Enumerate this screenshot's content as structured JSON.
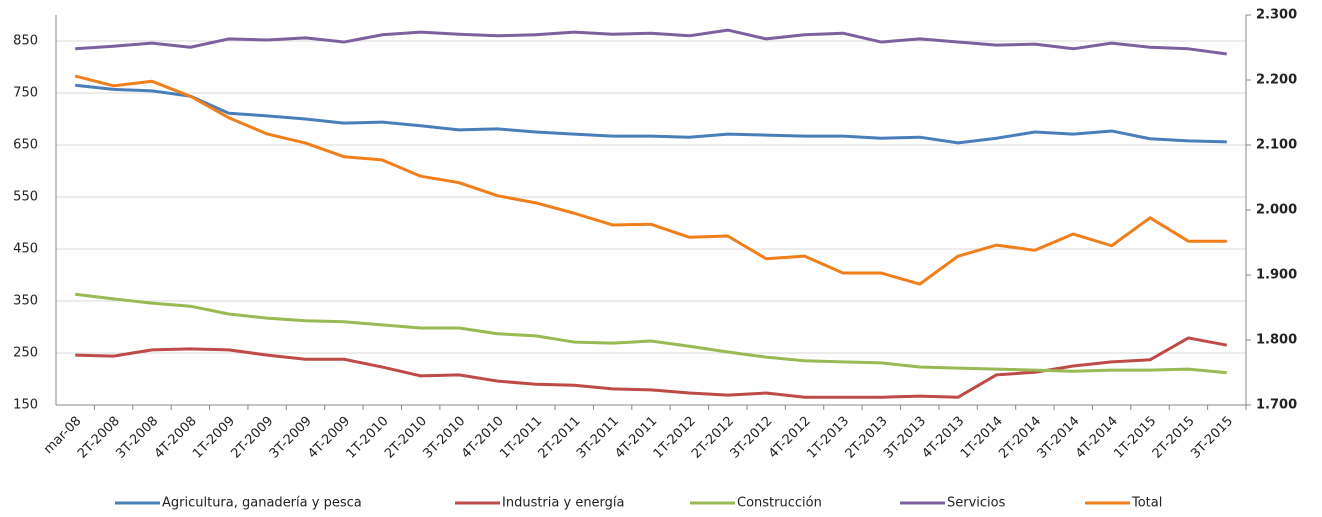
{
  "chart_data": {
    "type": "line",
    "categories": [
      "mar-08",
      "2T-2008",
      "3T-2008",
      "4T-2008",
      "1T-2009",
      "2T-2009",
      "3T-2009",
      "4T-2009",
      "1T-2010",
      "2T-2010",
      "3T-2010",
      "4T-2010",
      "1T-2011",
      "2T-2011",
      "3T-2011",
      "4T-2011",
      "1T-2012",
      "2T-2012",
      "3T-2012",
      "4T-2012",
      "1T-2013",
      "2T-2013",
      "3T-2013",
      "4T-2013",
      "1T-2014",
      "2T-2014",
      "3T-2014",
      "4T-2014",
      "1T-2015",
      "2T-2015",
      "3T-2015"
    ],
    "series": [
      {
        "name": "Agricultura, ganadería y pesca",
        "color": "#4a7ebb",
        "values": [
          765,
          757,
          754,
          744,
          711,
          706,
          700,
          692,
          694,
          687,
          679,
          681,
          675,
          671,
          667,
          667,
          665,
          671,
          669,
          667,
          667,
          663,
          665,
          654,
          663,
          675,
          671,
          677,
          662,
          658,
          656
        ]
      },
      {
        "name": "Industria y energía",
        "color": "#be4b48",
        "values": [
          246,
          244,
          256,
          258,
          256,
          246,
          238,
          238,
          223,
          206,
          208,
          196,
          190,
          188,
          181,
          179,
          173,
          169,
          173,
          165,
          165,
          165,
          167,
          165,
          208,
          213,
          225,
          233,
          237,
          279,
          265
        ]
      },
      {
        "name": "Construcción",
        "color": "#98b954",
        "values": [
          363,
          354,
          346,
          340,
          325,
          317,
          312,
          310,
          304,
          298,
          298,
          287,
          283,
          271,
          269,
          273,
          263,
          252,
          242,
          235,
          233,
          231,
          223,
          221,
          219,
          217,
          215,
          217,
          217,
          219,
          212
        ]
      },
      {
        "name": "Servicios",
        "color": "#7d60a0",
        "values": [
          835,
          840,
          846,
          838,
          854,
          852,
          856,
          848,
          862,
          867,
          863,
          860,
          862,
          867,
          863,
          865,
          860,
          871,
          854,
          862,
          865,
          848,
          854,
          848,
          842,
          844,
          835,
          846,
          838,
          835,
          825
        ]
      },
      {
        "name": "Total",
        "color": "#f07e1b",
        "axis": "y2",
        "values": [
          2206,
          2191,
          2198,
          2175,
          2142,
          2117,
          2103,
          2082,
          2077,
          2052,
          2042,
          2022,
          2011,
          1995,
          1977,
          1978,
          1958,
          1960,
          1925,
          1929,
          1903,
          1903,
          1886,
          1929,
          1946,
          1938,
          1963,
          1945,
          1988,
          1952,
          1952
        ]
      }
    ],
    "ylim": [
      150,
      900
    ],
    "yticks": [
      150,
      250,
      350,
      450,
      550,
      650,
      750,
      850
    ],
    "y2lim": [
      1700,
      2300
    ],
    "y2ticks": [
      {
        "value": 1700,
        "label": "1.700"
      },
      {
        "value": 1800,
        "label": "1.800"
      },
      {
        "value": 1900,
        "label": "1.900"
      },
      {
        "value": 2000,
        "label": "2.000"
      },
      {
        "value": 2100,
        "label": "2.100"
      },
      {
        "value": 2200,
        "label": "2.200"
      },
      {
        "value": 2300,
        "label": "2.300"
      }
    ],
    "y2color": "#f07e1b",
    "grid": true,
    "legend": "bottom"
  }
}
